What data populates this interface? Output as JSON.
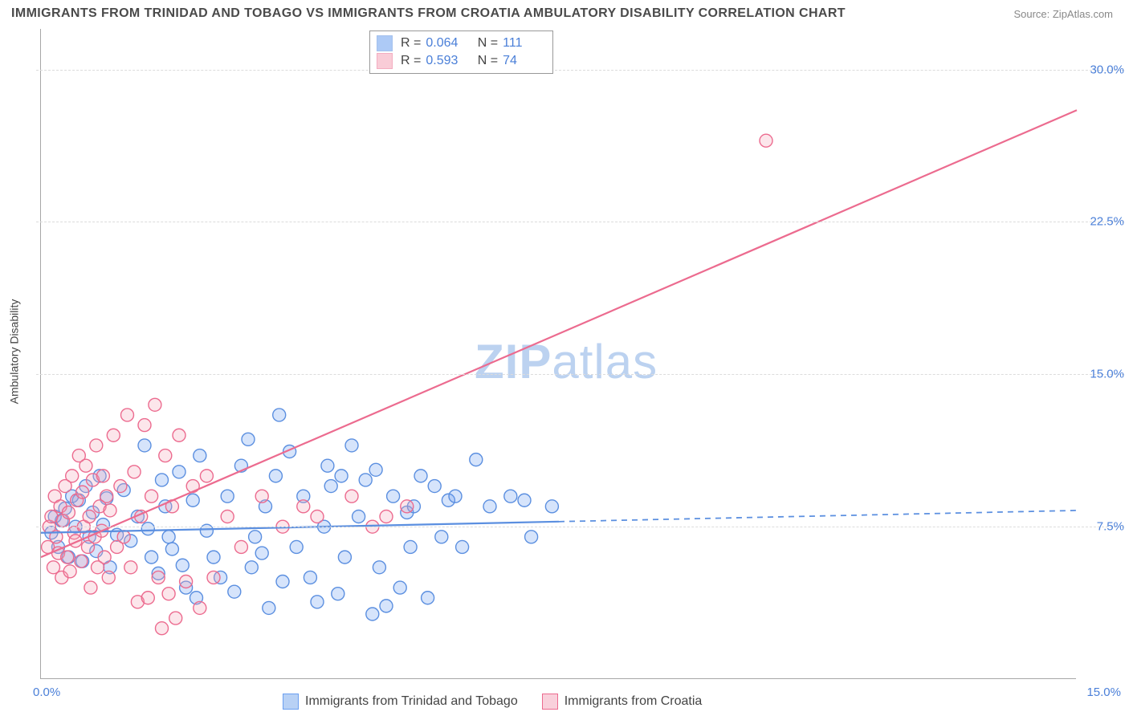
{
  "title": "IMMIGRANTS FROM TRINIDAD AND TOBAGO VS IMMIGRANTS FROM CROATIA AMBULATORY DISABILITY CORRELATION CHART",
  "source": "Source: ZipAtlas.com",
  "ylabel": "Ambulatory Disability",
  "watermark_bold": "ZIP",
  "watermark_rest": "atlas",
  "chart": {
    "type": "scatter",
    "background_color": "#ffffff",
    "grid_color": "#dcdcdc",
    "axis_color": "#a7a7a7",
    "xlim": [
      0,
      15
    ],
    "ylim": [
      0,
      32
    ],
    "yticks": [
      7.5,
      15.0,
      22.5,
      30.0
    ],
    "ytick_labels": [
      "7.5%",
      "15.0%",
      "22.5%",
      "30.0%"
    ],
    "xtick_left": "0.0%",
    "xtick_right": "15.0%",
    "tick_color": "#4a7fd8",
    "tick_fontsize": 15,
    "marker_radius": 8,
    "marker_stroke_width": 1.4,
    "marker_fill_opacity": 0.28,
    "series": [
      {
        "name": "Immigrants from Trinidad and Tobago",
        "color": "#6b9ff0",
        "stroke": "#5b8fe0",
        "R": "0.064",
        "N": "111",
        "trend": {
          "x1": 0,
          "y1": 7.2,
          "x2": 15,
          "y2": 8.3,
          "solid_until_x": 7.5
        },
        "points": [
          [
            0.15,
            7.2
          ],
          [
            0.2,
            8.0
          ],
          [
            0.25,
            6.5
          ],
          [
            0.3,
            7.8
          ],
          [
            0.35,
            8.4
          ],
          [
            0.4,
            6.0
          ],
          [
            0.45,
            9.0
          ],
          [
            0.5,
            7.5
          ],
          [
            0.55,
            8.8
          ],
          [
            0.6,
            5.8
          ],
          [
            0.65,
            9.5
          ],
          [
            0.7,
            7.0
          ],
          [
            0.75,
            8.2
          ],
          [
            0.8,
            6.3
          ],
          [
            0.85,
            10.0
          ],
          [
            0.9,
            7.6
          ],
          [
            0.95,
            8.9
          ],
          [
            1.0,
            5.5
          ],
          [
            1.1,
            7.1
          ],
          [
            1.2,
            9.3
          ],
          [
            1.3,
            6.8
          ],
          [
            1.4,
            8.0
          ],
          [
            1.5,
            11.5
          ],
          [
            1.55,
            7.4
          ],
          [
            1.6,
            6.0
          ],
          [
            1.7,
            5.2
          ],
          [
            1.75,
            9.8
          ],
          [
            1.8,
            8.5
          ],
          [
            1.85,
            7.0
          ],
          [
            1.9,
            6.4
          ],
          [
            2.0,
            10.2
          ],
          [
            2.05,
            5.6
          ],
          [
            2.1,
            4.5
          ],
          [
            2.2,
            8.8
          ],
          [
            2.25,
            4.0
          ],
          [
            2.3,
            11.0
          ],
          [
            2.4,
            7.3
          ],
          [
            2.5,
            6.0
          ],
          [
            2.6,
            5.0
          ],
          [
            2.7,
            9.0
          ],
          [
            2.8,
            4.3
          ],
          [
            2.9,
            10.5
          ],
          [
            3.0,
            11.8
          ],
          [
            3.05,
            5.5
          ],
          [
            3.1,
            7.0
          ],
          [
            3.2,
            6.2
          ],
          [
            3.25,
            8.5
          ],
          [
            3.3,
            3.5
          ],
          [
            3.4,
            10.0
          ],
          [
            3.45,
            13.0
          ],
          [
            3.5,
            4.8
          ],
          [
            3.6,
            11.2
          ],
          [
            3.7,
            6.5
          ],
          [
            3.8,
            9.0
          ],
          [
            3.9,
            5.0
          ],
          [
            4.0,
            3.8
          ],
          [
            4.1,
            7.5
          ],
          [
            4.15,
            10.5
          ],
          [
            4.2,
            9.5
          ],
          [
            4.3,
            4.2
          ],
          [
            4.35,
            10.0
          ],
          [
            4.4,
            6.0
          ],
          [
            4.5,
            11.5
          ],
          [
            4.6,
            8.0
          ],
          [
            4.7,
            9.8
          ],
          [
            4.8,
            3.2
          ],
          [
            4.85,
            10.3
          ],
          [
            4.9,
            5.5
          ],
          [
            5.0,
            3.6
          ],
          [
            5.1,
            9.0
          ],
          [
            5.2,
            4.5
          ],
          [
            5.3,
            8.2
          ],
          [
            5.35,
            6.5
          ],
          [
            5.4,
            8.5
          ],
          [
            5.5,
            10.0
          ],
          [
            5.6,
            4.0
          ],
          [
            5.7,
            9.5
          ],
          [
            5.8,
            7.0
          ],
          [
            5.9,
            8.8
          ],
          [
            6.0,
            9.0
          ],
          [
            6.1,
            6.5
          ],
          [
            6.3,
            10.8
          ],
          [
            6.5,
            8.5
          ],
          [
            6.8,
            9.0
          ],
          [
            7.0,
            8.8
          ],
          [
            7.1,
            7.0
          ],
          [
            7.4,
            8.5
          ]
        ]
      },
      {
        "name": "Immigrants from Croatia",
        "color": "#f5a4b8",
        "stroke": "#ec6b8f",
        "R": "0.593",
        "N": "74",
        "trend": {
          "x1": 0,
          "y1": 6.0,
          "x2": 15,
          "y2": 28.0,
          "solid_until_x": 15
        },
        "points": [
          [
            0.1,
            6.5
          ],
          [
            0.12,
            7.5
          ],
          [
            0.15,
            8.0
          ],
          [
            0.18,
            5.5
          ],
          [
            0.2,
            9.0
          ],
          [
            0.22,
            7.0
          ],
          [
            0.25,
            6.2
          ],
          [
            0.28,
            8.5
          ],
          [
            0.3,
            5.0
          ],
          [
            0.32,
            7.8
          ],
          [
            0.35,
            9.5
          ],
          [
            0.38,
            6.0
          ],
          [
            0.4,
            8.2
          ],
          [
            0.42,
            5.3
          ],
          [
            0.45,
            10.0
          ],
          [
            0.48,
            7.2
          ],
          [
            0.5,
            6.8
          ],
          [
            0.52,
            8.8
          ],
          [
            0.55,
            11.0
          ],
          [
            0.58,
            5.8
          ],
          [
            0.6,
            9.2
          ],
          [
            0.62,
            7.5
          ],
          [
            0.65,
            10.5
          ],
          [
            0.68,
            6.5
          ],
          [
            0.7,
            8.0
          ],
          [
            0.72,
            4.5
          ],
          [
            0.75,
            9.8
          ],
          [
            0.78,
            7.0
          ],
          [
            0.8,
            11.5
          ],
          [
            0.82,
            5.5
          ],
          [
            0.85,
            8.5
          ],
          [
            0.88,
            7.3
          ],
          [
            0.9,
            10.0
          ],
          [
            0.92,
            6.0
          ],
          [
            0.95,
            9.0
          ],
          [
            0.98,
            5.0
          ],
          [
            1.0,
            8.3
          ],
          [
            1.05,
            12.0
          ],
          [
            1.1,
            6.5
          ],
          [
            1.15,
            9.5
          ],
          [
            1.2,
            7.0
          ],
          [
            1.25,
            13.0
          ],
          [
            1.3,
            5.5
          ],
          [
            1.35,
            10.2
          ],
          [
            1.4,
            3.8
          ],
          [
            1.45,
            8.0
          ],
          [
            1.5,
            12.5
          ],
          [
            1.55,
            4.0
          ],
          [
            1.6,
            9.0
          ],
          [
            1.65,
            13.5
          ],
          [
            1.7,
            5.0
          ],
          [
            1.75,
            2.5
          ],
          [
            1.8,
            11.0
          ],
          [
            1.85,
            4.2
          ],
          [
            1.9,
            8.5
          ],
          [
            1.95,
            3.0
          ],
          [
            2.0,
            12.0
          ],
          [
            2.1,
            4.8
          ],
          [
            2.2,
            9.5
          ],
          [
            2.3,
            3.5
          ],
          [
            2.4,
            10.0
          ],
          [
            2.5,
            5.0
          ],
          [
            2.7,
            8.0
          ],
          [
            2.9,
            6.5
          ],
          [
            3.2,
            9.0
          ],
          [
            3.5,
            7.5
          ],
          [
            3.8,
            8.5
          ],
          [
            4.0,
            8.0
          ],
          [
            4.5,
            9.0
          ],
          [
            4.8,
            7.5
          ],
          [
            5.0,
            8.0
          ],
          [
            5.3,
            8.5
          ],
          [
            10.5,
            26.5
          ]
        ]
      }
    ],
    "legend_bottom": [
      {
        "label": "Immigrants from Trinidad and Tobago",
        "fill": "#b8d1f5",
        "stroke": "#6b9ff0"
      },
      {
        "label": "Immigrants from Croatia",
        "fill": "#f9d0db",
        "stroke": "#ec6b8f"
      }
    ],
    "trend_line_width": 2.2
  }
}
